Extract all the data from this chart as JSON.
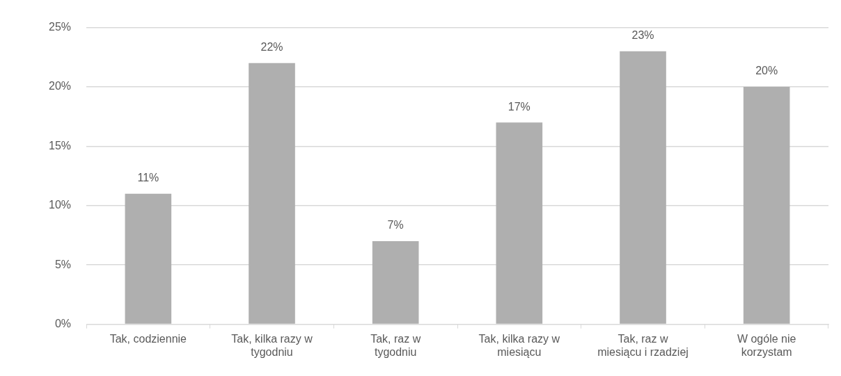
{
  "chart_data": {
    "type": "bar",
    "categories": [
      "Tak, codziennie",
      "Tak, kilka razy w tygodniu",
      "Tak, raz w tygodniu",
      "Tak, kilka razy w miesiącu",
      "Tak, raz w miesiącu i rzadziej",
      "W ogóle nie korzystam"
    ],
    "values": [
      11,
      22,
      7,
      17,
      23,
      20
    ],
    "value_labels": [
      "11%",
      "22%",
      "7%",
      "17%",
      "23%",
      "20%"
    ],
    "color": "#afafaf",
    "ylim": [
      0,
      25
    ],
    "yticks": [
      {
        "value": 0,
        "label": "0%"
      },
      {
        "value": 5,
        "label": "5%"
      },
      {
        "value": 10,
        "label": "10%"
      },
      {
        "value": 15,
        "label": "15%"
      },
      {
        "value": 20,
        "label": "20%"
      },
      {
        "value": 25,
        "label": "25%"
      }
    ],
    "grid": "y",
    "legend": false
  }
}
